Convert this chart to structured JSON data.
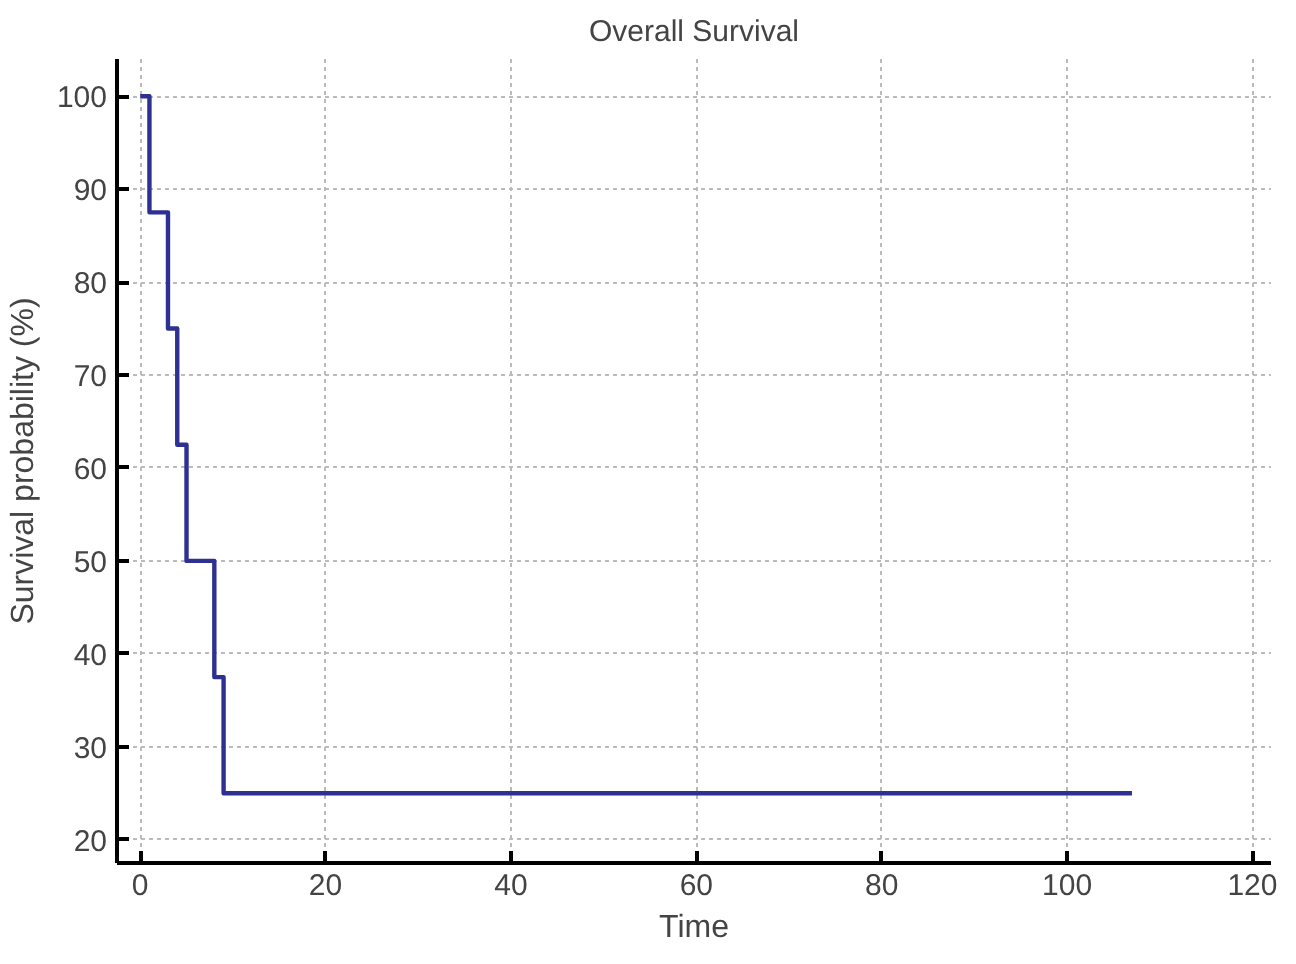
{
  "chart_data": {
    "type": "step",
    "title": "Overall Survival",
    "xlabel": "Time",
    "ylabel": "Survival probability (%)",
    "x": [
      0,
      1,
      3,
      4,
      5,
      8,
      9,
      107
    ],
    "series": [
      {
        "color": "#2e3192",
        "values": [
          100,
          87.5,
          75,
          62.5,
          50,
          37.5,
          25,
          25
        ]
      }
    ],
    "xlim": [
      -2.5,
      122
    ],
    "ylim": [
      17.5,
      104
    ],
    "xticks": [
      0,
      20,
      40,
      60,
      80,
      100,
      120
    ],
    "yticks": [
      20,
      30,
      40,
      50,
      60,
      70,
      80,
      90,
      100
    ],
    "grid": true
  }
}
